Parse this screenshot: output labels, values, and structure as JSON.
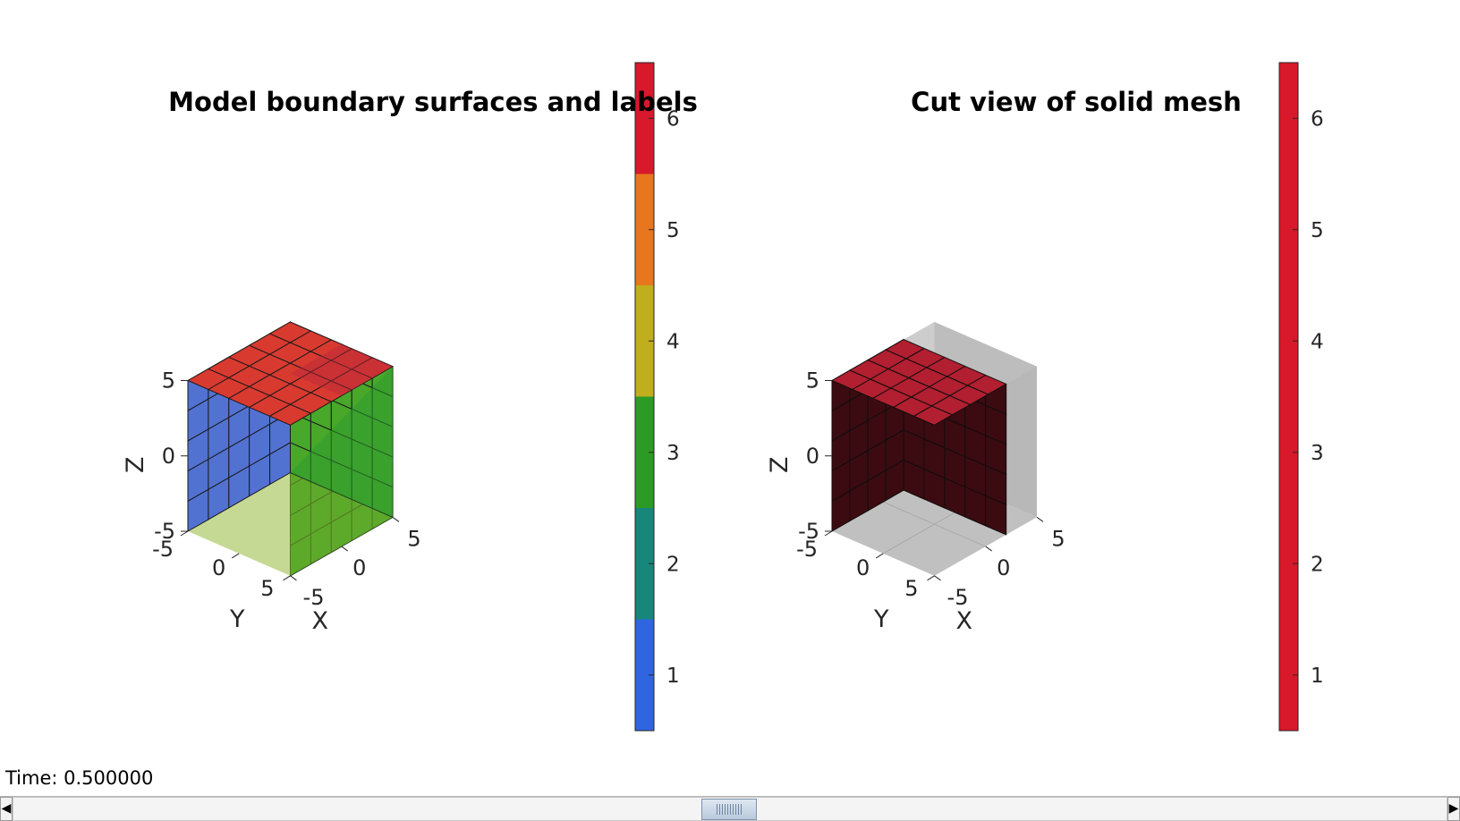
{
  "window": {
    "time_label": "Time: 0.500000"
  },
  "colors": {
    "label1": "#5272d2",
    "label2": "#17867b",
    "label3": "#2ea02d",
    "label4": "#c0ae1c",
    "label5": "#e8761d",
    "label6": "#d8182b",
    "solid_cut": "#3c0b11",
    "solid_top": "#b11f30",
    "ghost": "#bdbdbd"
  },
  "chart_data": [
    {
      "type": "3d-surface",
      "title": "Model boundary surfaces and labels",
      "xlabel": "X",
      "ylabel": "Y",
      "zlabel": "Z",
      "xlim": [
        -5,
        5
      ],
      "ylim": [
        -5,
        5
      ],
      "zlim": [
        -5,
        5
      ],
      "xticks": [
        "-5",
        "0",
        "5"
      ],
      "yticks": [
        "-5",
        "0",
        "5"
      ],
      "zticks": [
        "-5",
        "0",
        "5"
      ],
      "cells_per_edge": 5,
      "faces": [
        {
          "face": "y-min (front)",
          "label": 1
        },
        {
          "face": "x-max (right side)",
          "label": 3
        },
        {
          "face": "z-max (top)",
          "label": 6
        }
      ],
      "colorbar": {
        "ticks": [
          "1",
          "2",
          "3",
          "4",
          "5",
          "6"
        ],
        "range": [
          0.5,
          6.5
        ],
        "bands": [
          {
            "from": 0.5,
            "to": 1.5,
            "color": "#2f65e0"
          },
          {
            "from": 1.5,
            "to": 2.5,
            "color": "#17867b"
          },
          {
            "from": 2.5,
            "to": 3.5,
            "color": "#2b9b26"
          },
          {
            "from": 3.5,
            "to": 4.5,
            "color": "#c0ae1c"
          },
          {
            "from": 4.5,
            "to": 5.5,
            "color": "#e8761d"
          },
          {
            "from": 5.5,
            "to": 6.5,
            "color": "#d8182b"
          }
        ]
      }
    },
    {
      "type": "3d-surface",
      "title": "Cut view of solid mesh",
      "xlabel": "X",
      "ylabel": "Y",
      "zlabel": "Z",
      "xlim": [
        -5,
        5
      ],
      "ylim": [
        -5,
        5
      ],
      "zlim": [
        -5,
        5
      ],
      "xticks": [
        "-5",
        "0",
        "5"
      ],
      "yticks": [
        "-5",
        "0",
        "5"
      ],
      "zticks": [
        "-5",
        "0",
        "5"
      ],
      "cut_x_max": 2,
      "colorbar": {
        "ticks": [
          "1",
          "2",
          "3",
          "4",
          "5",
          "6"
        ],
        "range": [
          0.5,
          6.5
        ],
        "bands": [
          {
            "from": 0.5,
            "to": 6.5,
            "color": "#d8182b"
          }
        ]
      }
    }
  ]
}
